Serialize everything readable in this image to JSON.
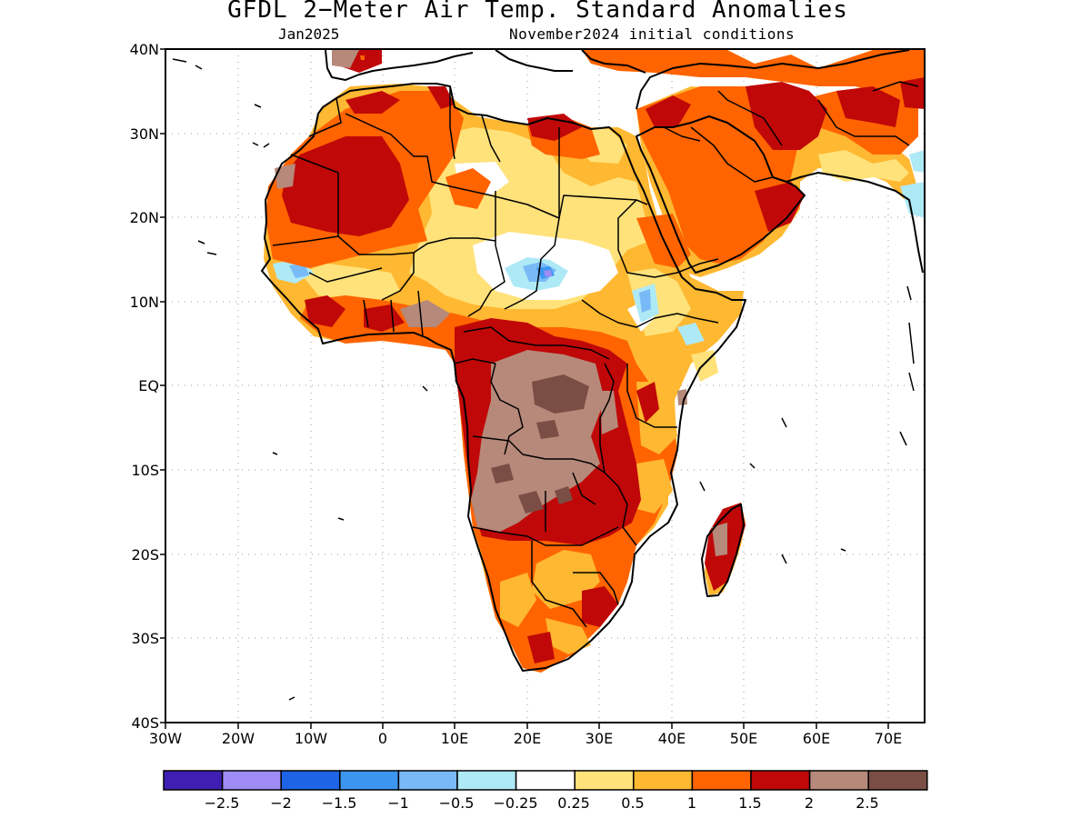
{
  "title": "GFDL 2−Meter Air Temp. Standard Anomalies",
  "subtitle_left": "Jan2025",
  "subtitle_right": "November2024 initial conditions",
  "lat_labels": [
    "40N",
    "30N",
    "20N",
    "10N",
    "EQ",
    "10S",
    "20S",
    "30S",
    "40S"
  ],
  "lon_labels": [
    "30W",
    "20W",
    "10W",
    "0",
    "10E",
    "20E",
    "30E",
    "40E",
    "50E",
    "60E",
    "70E"
  ],
  "colorbar": {
    "colors": [
      "#3f1fb3",
      "#9f8cf5",
      "#1e64e6",
      "#3c96f0",
      "#78b9f8",
      "#aee9f6",
      "#ffffff",
      "#ffe27a",
      "#ffb831",
      "#ff6400",
      "#c00808",
      "#b6897a",
      "#7a4e45"
    ],
    "labels": [
      "−2.5",
      "−2",
      "−1.5",
      "−1",
      "−0.5",
      "−0.25",
      "0.25",
      "0.5",
      "1",
      "1.5",
      "2",
      "2.5"
    ]
  }
}
